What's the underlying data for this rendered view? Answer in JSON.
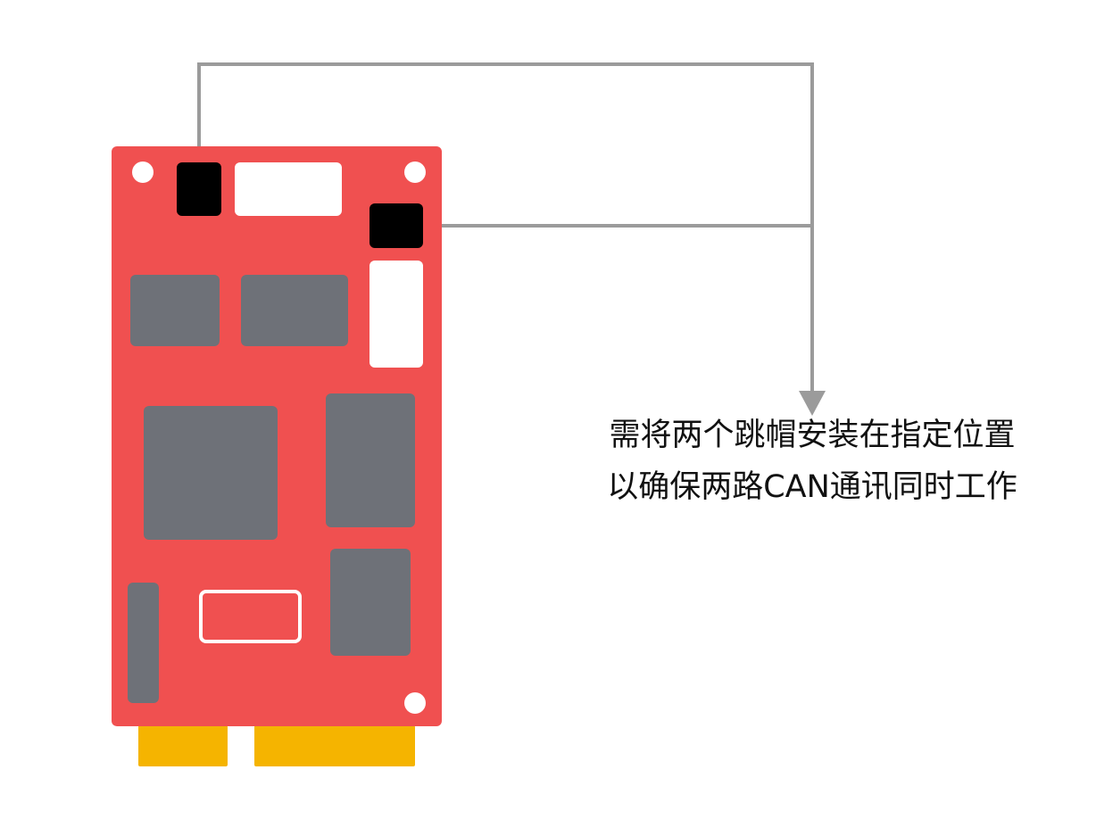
{
  "caption": {
    "line1": "需将两个跳帽安装在指定位置",
    "line2": "以确保两路CAN通讯同时工作"
  },
  "colors": {
    "board": "#f05050",
    "chip": "#6e7178",
    "jumper": "#000000",
    "gold_finger": "#f5b400",
    "slot": "#ffffff",
    "leader_line": "#9b9b9b",
    "text": "#111111"
  },
  "icons": {
    "board": "pcb-board-icon",
    "jumper": "jumper-cap-icon",
    "arrow": "arrow-down-icon"
  }
}
